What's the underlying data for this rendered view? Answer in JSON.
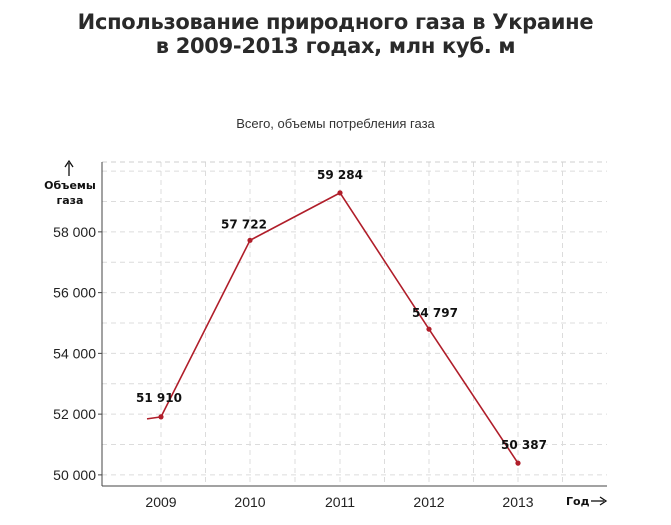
{
  "title_line1": "Использование природного газа в Украине",
  "title_line2": "в 2009-2013 годах, млн куб. м",
  "chart_data": {
    "type": "line",
    "title": "Использование природного газа в Украине в 2009-2013 годах, млн куб. м",
    "subtitle": "Всего, объемы потребления газа",
    "ylabel": "Объемы газа",
    "xlabel": "Год",
    "categories": [
      "2009",
      "2010",
      "2011",
      "2012",
      "2013"
    ],
    "values": [
      51910,
      57722,
      59284,
      54797,
      50387
    ],
    "value_labels": [
      "51 910",
      "57 722",
      "59 284",
      "54 797",
      "50 387"
    ],
    "yticks": [
      50000,
      52000,
      54000,
      56000,
      58000
    ],
    "ytick_labels": [
      "50 000",
      "52 000",
      "54 000",
      "56 000",
      "58 000"
    ],
    "ylim": [
      49700,
      60300
    ],
    "grid": true,
    "line_color": "#b01e2a"
  }
}
